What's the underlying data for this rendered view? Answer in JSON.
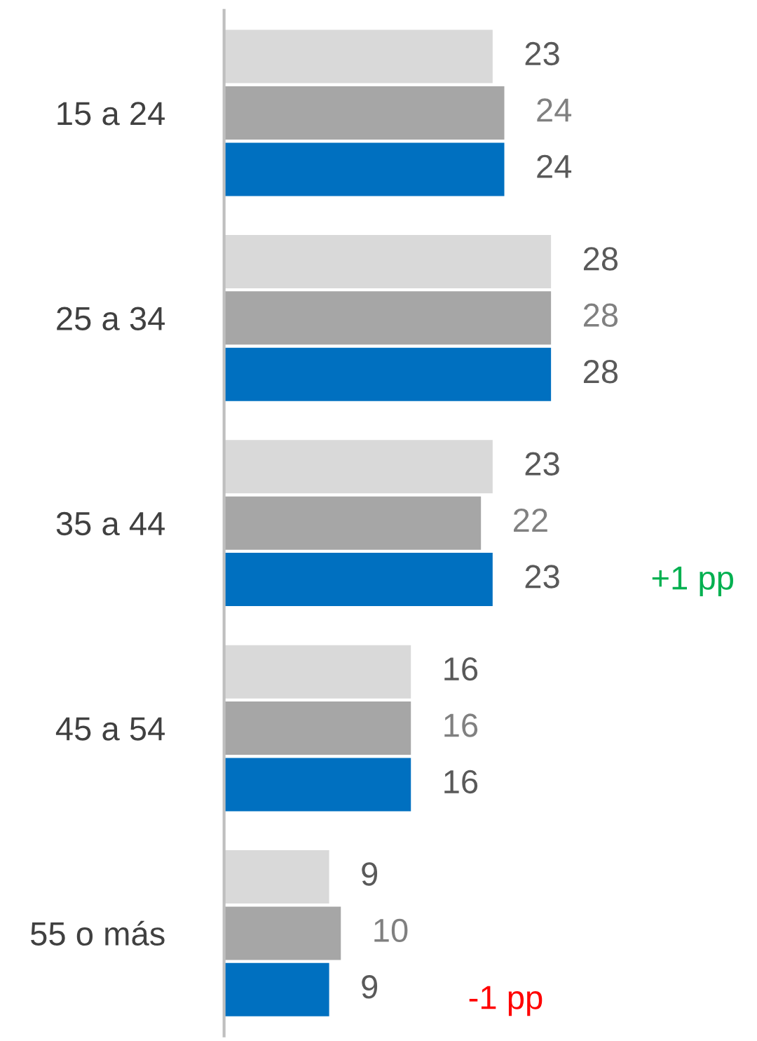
{
  "chart_data": {
    "type": "bar",
    "orientation": "horizontal",
    "data_labels": true,
    "categories": [
      "15 a 24",
      "25 a 34",
      "35 a 44",
      "45 a 54",
      "55 o más"
    ],
    "series": [
      {
        "color": "#d9d9d9",
        "values": [
          23,
          28,
          23,
          16,
          9
        ]
      },
      {
        "color": "#a6a6a6",
        "values": [
          24,
          28,
          22,
          16,
          10
        ]
      },
      {
        "color": "#0070c0",
        "values": [
          24,
          28,
          23,
          16,
          9
        ]
      }
    ],
    "annotations": [
      "+1 pp",
      "-1 pp"
    ],
    "grid": false,
    "legend": false
  }
}
